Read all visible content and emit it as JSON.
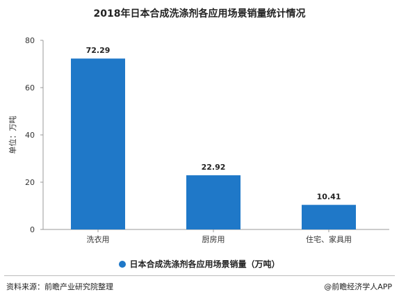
{
  "chart_data": {
    "type": "bar",
    "title": "2018年日本合成洗涤剂各应用场景销量统计情况",
    "categories": [
      "洗衣用",
      "厨房用",
      "住宅、家具用"
    ],
    "series": [
      {
        "name": "日本合成洗涤剂各应用场景销量（万吨）",
        "values": [
          72.29,
          22.92,
          10.41
        ]
      }
    ],
    "data_labels": [
      "72.29",
      "22.92",
      "10.41"
    ],
    "ylabel": "单位：万吨",
    "xlabel": "",
    "ylim": [
      0,
      80
    ],
    "yticks": [
      0,
      20,
      40,
      60,
      80
    ],
    "grid": false,
    "legend_position": "bottom",
    "bar_color": "#1f78c8"
  },
  "footer": {
    "source": "资料来源：前瞻产业研究院整理",
    "credit": "@前瞻经济学人APP"
  }
}
